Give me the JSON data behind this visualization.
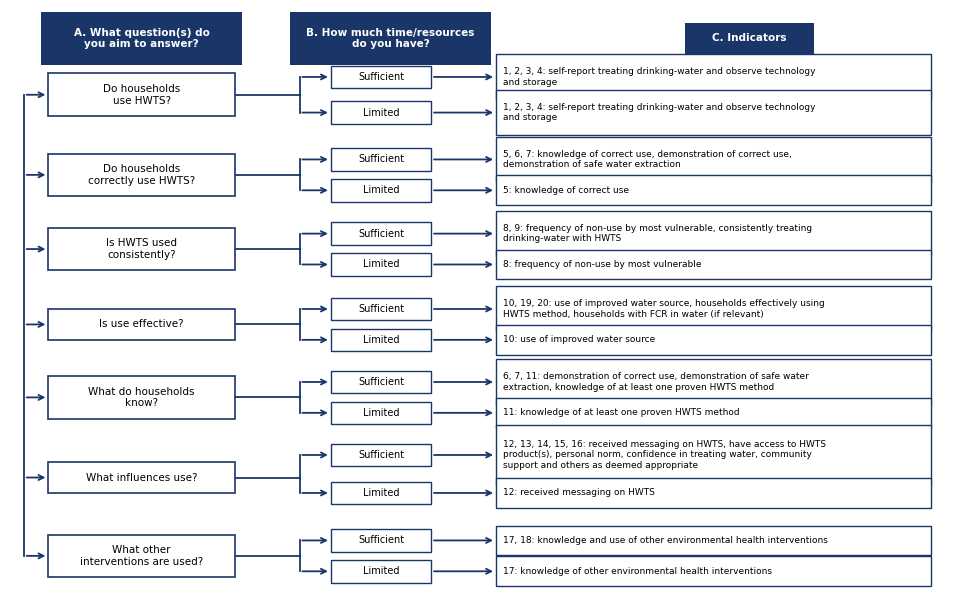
{
  "bg_color": "#ffffff",
  "dark_blue": "#1a3668",
  "header_bg": "#1a3668",
  "arrow_color": "#1a3668",
  "rows": [
    {
      "question": "Do households\nuse HWTS?",
      "sufficient_text": "1, 2, 3, 4: self-report treating drinking-water and observe technology\nand storage",
      "limited_text": "1, 2, 3, 4: self-report treating drinking-water and observe technology\nand storage",
      "suf_lines": 2,
      "lim_lines": 2
    },
    {
      "question": "Do households\ncorrectly use HWTS?",
      "sufficient_text": "5, 6, 7: knowledge of correct use, demonstration of correct use,\ndemonstration of safe water extraction",
      "limited_text": "5: knowledge of correct use",
      "suf_lines": 2,
      "lim_lines": 1
    },
    {
      "question": "Is HWTS used\nconsistently?",
      "sufficient_text": "8, 9: frequency of non-use by most vulnerable, consistently treating\ndrinking-water with HWTS",
      "limited_text": "8: frequency of non-use by most vulnerable",
      "suf_lines": 2,
      "lim_lines": 1
    },
    {
      "question": "Is use effective?",
      "sufficient_text": "10, 19, 20: use of improved water source, households effectively using\nHWTS method, households with FCR in water (if relevant)",
      "limited_text": "10: use of improved water source",
      "suf_lines": 2,
      "lim_lines": 1
    },
    {
      "question": "What do households\nknow?",
      "sufficient_text": "6, 7, 11: demonstration of correct use, demonstration of safe water\nextraction, knowledge of at least one proven HWTS method",
      "limited_text": "11: knowledge of at least one proven HWTS method",
      "suf_lines": 2,
      "lim_lines": 1
    },
    {
      "question": "What influences use?",
      "sufficient_text": "12, 13, 14, 15, 16: received messaging on HWTS, have access to HWTS\nproduct(s), personal norm, confidence in treating water, community\nsupport and others as deemed appropriate",
      "limited_text": "12: received messaging on HWTS",
      "suf_lines": 3,
      "lim_lines": 1
    },
    {
      "question": "What other\ninterventions are used?",
      "sufficient_text": "17, 18: knowledge and use of other environmental health interventions",
      "limited_text": "17: knowledge of other environmental health interventions",
      "suf_lines": 1,
      "lim_lines": 1
    }
  ]
}
